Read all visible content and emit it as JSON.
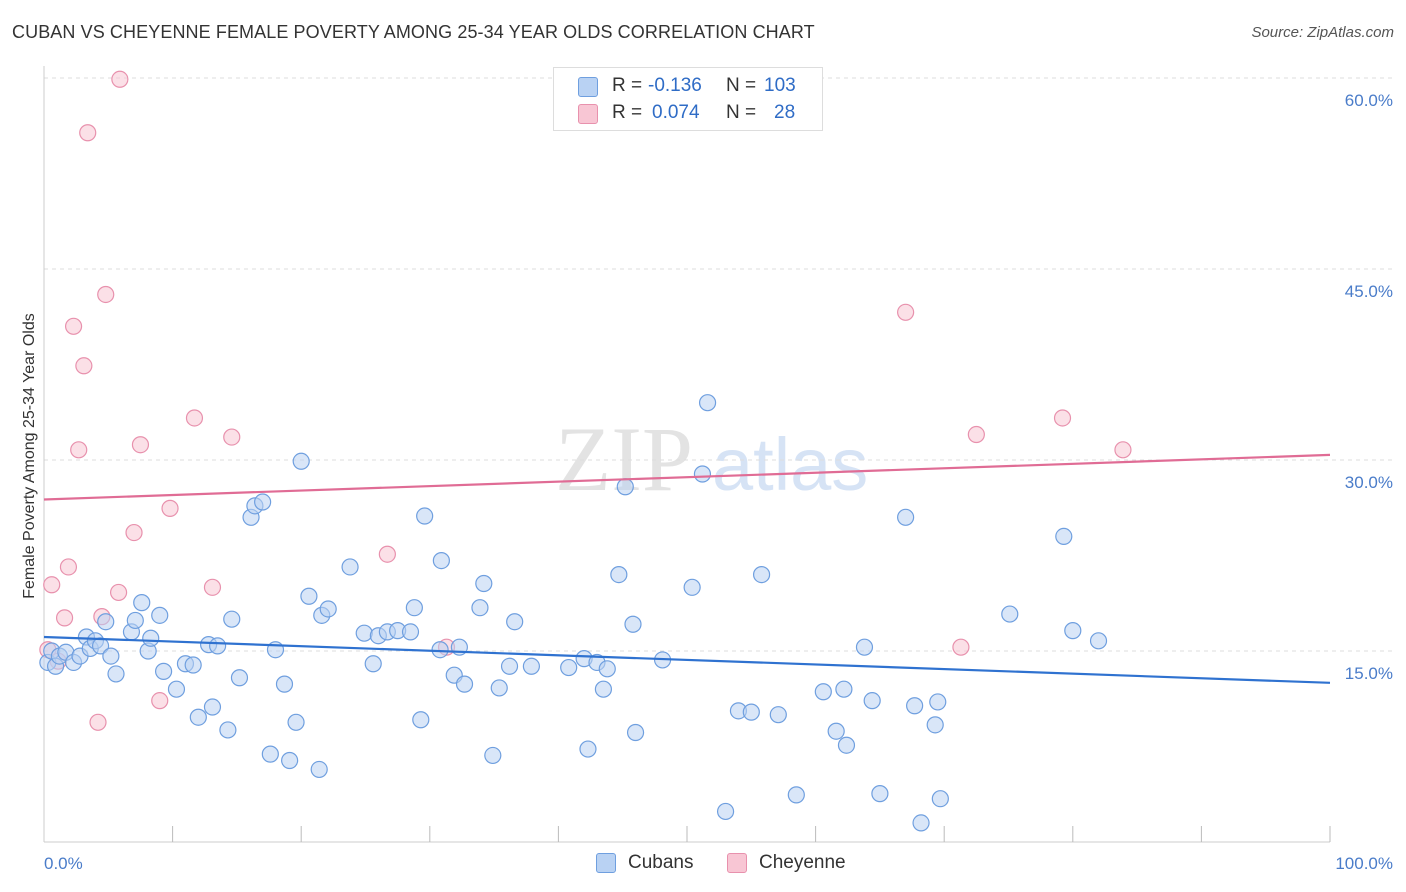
{
  "header": {
    "title": "CUBAN VS CHEYENNE FEMALE POVERTY AMONG 25-34 YEAR OLDS CORRELATION CHART",
    "source": "Source: ZipAtlas.com"
  },
  "watermark": {
    "zip": "ZIP",
    "atlas": "atlas"
  },
  "legend": {
    "rows": [
      {
        "r_label": "R =",
        "r_value": "-0.136",
        "n_label": "N =",
        "n_value": "103",
        "color": "#a9c8f0"
      },
      {
        "r_label": "R =",
        "r_value": "0.074",
        "n_label": "N =",
        "n_value": "28",
        "color": "#f6b9cc"
      }
    ]
  },
  "bottom_legend": {
    "cubans": "Cubans",
    "cheyenne": "Cheyenne"
  },
  "colors": {
    "cuban_fill": "#b9d2f3",
    "cuban_stroke": "#6f9fdf",
    "cuban_line": "#2f72d0",
    "cheyenne_fill": "#f8c6d4",
    "cheyenne_stroke": "#e891ad",
    "cheyenne_line": "#e06c95",
    "axis_text": "#4a7cc9",
    "grid": "#dddddd"
  },
  "chart_data": {
    "type": "scatter",
    "title": "CUBAN VS CHEYENNE FEMALE POVERTY AMONG 25-34 YEAR OLDS CORRELATION CHART",
    "xlabel": "",
    "ylabel": "Female Poverty Among 25-34 Year Olds",
    "xlim": [
      0,
      100
    ],
    "ylim": [
      0,
      60
    ],
    "x_tick_labels": [
      "0.0%",
      "100.0%"
    ],
    "y_ticks": [
      15,
      30,
      45,
      60
    ],
    "y_tick_labels": [
      "15.0%",
      "30.0%",
      "45.0%",
      "60.0%"
    ],
    "grid": true,
    "series": [
      {
        "name": "Cubans",
        "R": -0.136,
        "N": 103,
        "trend": {
          "x": [
            0,
            100
          ],
          "y": [
            16.1,
            12.5
          ]
        },
        "points": [
          [
            0.3,
            14.1
          ],
          [
            0.6,
            15.0
          ],
          [
            0.9,
            13.8
          ],
          [
            1.2,
            14.6
          ],
          [
            1.7,
            14.9
          ],
          [
            2.3,
            14.1
          ],
          [
            2.8,
            14.6
          ],
          [
            3.3,
            16.1
          ],
          [
            3.6,
            15.2
          ],
          [
            4.0,
            15.8
          ],
          [
            4.4,
            15.4
          ],
          [
            4.8,
            17.3
          ],
          [
            5.2,
            14.6
          ],
          [
            5.6,
            13.2
          ],
          [
            6.8,
            16.5
          ],
          [
            7.1,
            17.4
          ],
          [
            7.6,
            18.8
          ],
          [
            8.1,
            15.0
          ],
          [
            8.3,
            16.0
          ],
          [
            9.0,
            17.8
          ],
          [
            9.3,
            13.4
          ],
          [
            10.3,
            12.0
          ],
          [
            11.0,
            14.0
          ],
          [
            11.6,
            13.9
          ],
          [
            12.0,
            9.8
          ],
          [
            12.8,
            15.5
          ],
          [
            13.1,
            10.6
          ],
          [
            13.5,
            15.4
          ],
          [
            14.3,
            8.8
          ],
          [
            14.6,
            17.5
          ],
          [
            15.2,
            12.9
          ],
          [
            16.1,
            25.5
          ],
          [
            16.4,
            26.4
          ],
          [
            17.0,
            26.7
          ],
          [
            17.6,
            6.9
          ],
          [
            18.0,
            15.1
          ],
          [
            18.7,
            12.4
          ],
          [
            19.1,
            6.4
          ],
          [
            19.6,
            9.4
          ],
          [
            20.0,
            29.9
          ],
          [
            20.6,
            19.3
          ],
          [
            21.4,
            5.7
          ],
          [
            21.6,
            17.8
          ],
          [
            22.1,
            18.3
          ],
          [
            23.8,
            21.6
          ],
          [
            24.9,
            16.4
          ],
          [
            25.6,
            14.0
          ],
          [
            26.0,
            16.2
          ],
          [
            26.7,
            16.5
          ],
          [
            27.5,
            16.6
          ],
          [
            28.5,
            16.5
          ],
          [
            28.8,
            18.4
          ],
          [
            29.3,
            9.6
          ],
          [
            29.6,
            25.6
          ],
          [
            30.8,
            15.1
          ],
          [
            30.9,
            22.1
          ],
          [
            31.9,
            13.1
          ],
          [
            32.3,
            15.3
          ],
          [
            32.7,
            12.4
          ],
          [
            33.9,
            18.4
          ],
          [
            34.2,
            20.3
          ],
          [
            34.9,
            6.8
          ],
          [
            35.4,
            12.1
          ],
          [
            36.2,
            13.8
          ],
          [
            36.6,
            17.3
          ],
          [
            37.9,
            13.8
          ],
          [
            40.8,
            13.7
          ],
          [
            42.0,
            14.4
          ],
          [
            42.3,
            7.3
          ],
          [
            43.0,
            14.1
          ],
          [
            43.5,
            12.0
          ],
          [
            43.8,
            13.6
          ],
          [
            44.7,
            21.0
          ],
          [
            45.2,
            27.9
          ],
          [
            45.8,
            17.1
          ],
          [
            46.0,
            8.6
          ],
          [
            48.1,
            14.3
          ],
          [
            50.4,
            20.0
          ],
          [
            51.2,
            28.9
          ],
          [
            51.6,
            34.5
          ],
          [
            53.0,
            2.4
          ],
          [
            54.0,
            10.3
          ],
          [
            55.0,
            10.2
          ],
          [
            55.8,
            21.0
          ],
          [
            57.1,
            10.0
          ],
          [
            58.5,
            3.7
          ],
          [
            60.6,
            11.8
          ],
          [
            61.6,
            8.7
          ],
          [
            62.2,
            12.0
          ],
          [
            62.4,
            7.6
          ],
          [
            63.8,
            15.3
          ],
          [
            64.4,
            11.1
          ],
          [
            65.0,
            3.8
          ],
          [
            67.0,
            25.5
          ],
          [
            67.7,
            10.7
          ],
          [
            68.2,
            1.5
          ],
          [
            69.3,
            9.2
          ],
          [
            69.5,
            11.0
          ],
          [
            69.7,
            3.4
          ],
          [
            75.1,
            17.9
          ],
          [
            79.3,
            24.0
          ],
          [
            80.0,
            16.6
          ],
          [
            82.0,
            15.8
          ]
        ]
      },
      {
        "name": "Cheyenne",
        "R": 0.074,
        "N": 28,
        "trend": {
          "x": [
            0,
            100
          ],
          "y": [
            26.9,
            30.4
          ]
        },
        "points": [
          [
            0.3,
            15.1
          ],
          [
            0.6,
            20.2
          ],
          [
            1.1,
            14.2
          ],
          [
            1.6,
            17.6
          ],
          [
            1.9,
            21.6
          ],
          [
            2.3,
            40.5
          ],
          [
            2.7,
            30.8
          ],
          [
            3.1,
            37.4
          ],
          [
            3.4,
            55.7
          ],
          [
            4.2,
            9.4
          ],
          [
            4.5,
            17.7
          ],
          [
            4.8,
            43.0
          ],
          [
            5.8,
            19.6
          ],
          [
            5.9,
            59.9
          ],
          [
            7.0,
            24.3
          ],
          [
            7.5,
            31.2
          ],
          [
            9.0,
            11.1
          ],
          [
            9.8,
            26.2
          ],
          [
            11.7,
            33.3
          ],
          [
            13.1,
            20.0
          ],
          [
            14.6,
            31.8
          ],
          [
            26.7,
            22.6
          ],
          [
            31.3,
            15.3
          ],
          [
            67.0,
            41.6
          ],
          [
            71.3,
            15.3
          ],
          [
            72.5,
            32.0
          ],
          [
            79.2,
            33.3
          ],
          [
            83.9,
            30.8
          ]
        ]
      }
    ]
  }
}
